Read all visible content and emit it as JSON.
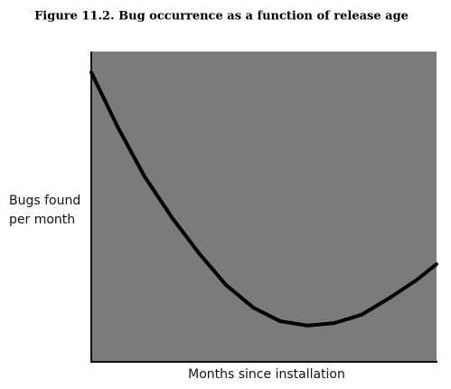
{
  "chart_data": {
    "type": "line",
    "title": "Figure 11.2. Bug occurrence as a function of release age",
    "x_label": "Months since installation",
    "y_label": [
      "Bugs found",
      "per month"
    ],
    "x": [
      0,
      7.6,
      15.4,
      23.3,
      31.2,
      39.0,
      46.9,
      54.7,
      62.6,
      70.4,
      78.3,
      86.1,
      94.0,
      100
    ],
    "values": [
      93.3,
      75.8,
      59.8,
      46.6,
      35.0,
      24.8,
      17.5,
      13.1,
      11.7,
      12.5,
      15.2,
      20.4,
      26.2,
      31.5
    ],
    "color": "#000000",
    "xlim": [
      0,
      100
    ],
    "ylim": [
      0,
      100
    ]
  }
}
